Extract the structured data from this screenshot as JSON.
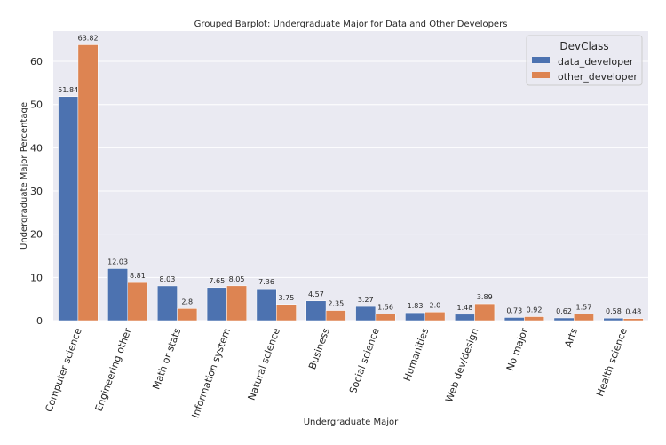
{
  "chart_data": {
    "type": "bar",
    "title": "Grouped Barplot: Undergraduate Major for Data and Other Developers",
    "xlabel": "Undergraduate Major",
    "ylabel": "Undergraduate Major Percentage",
    "ylim": [
      0,
      67
    ],
    "yticks": [
      0,
      10,
      20,
      30,
      40,
      50,
      60
    ],
    "grid": true,
    "legend_placement": "top-right",
    "legend_title": "DevClass",
    "categories": [
      "Computer science",
      "Engineering other",
      "Math or stats",
      "Information system",
      "Natural science",
      "Business",
      "Social science",
      "Humanities",
      "Web dev/design",
      "No major",
      "Arts",
      "Health science"
    ],
    "series": [
      {
        "name": "data_developer",
        "color": "#4c72b0",
        "values": [
          51.84,
          12.03,
          8.03,
          7.65,
          7.36,
          4.57,
          3.27,
          1.83,
          1.48,
          0.73,
          0.62,
          0.58
        ],
        "labels": [
          "51.84",
          "12.03",
          "8.03",
          "7.65",
          "7.36",
          "4.57",
          "3.27",
          "1.83",
          "1.48",
          "0.73",
          "0.62",
          "0.58"
        ]
      },
      {
        "name": "other_developer",
        "color": "#dd8452",
        "values": [
          63.82,
          8.81,
          2.8,
          8.05,
          3.75,
          2.35,
          1.56,
          2.0,
          3.89,
          0.92,
          1.57,
          0.48
        ],
        "labels": [
          "63.82",
          "8.81",
          "2.8",
          "8.05",
          "3.75",
          "2.35",
          "1.56",
          "2.0",
          "3.89",
          "0.92",
          "1.57",
          "0.48"
        ]
      }
    ]
  }
}
